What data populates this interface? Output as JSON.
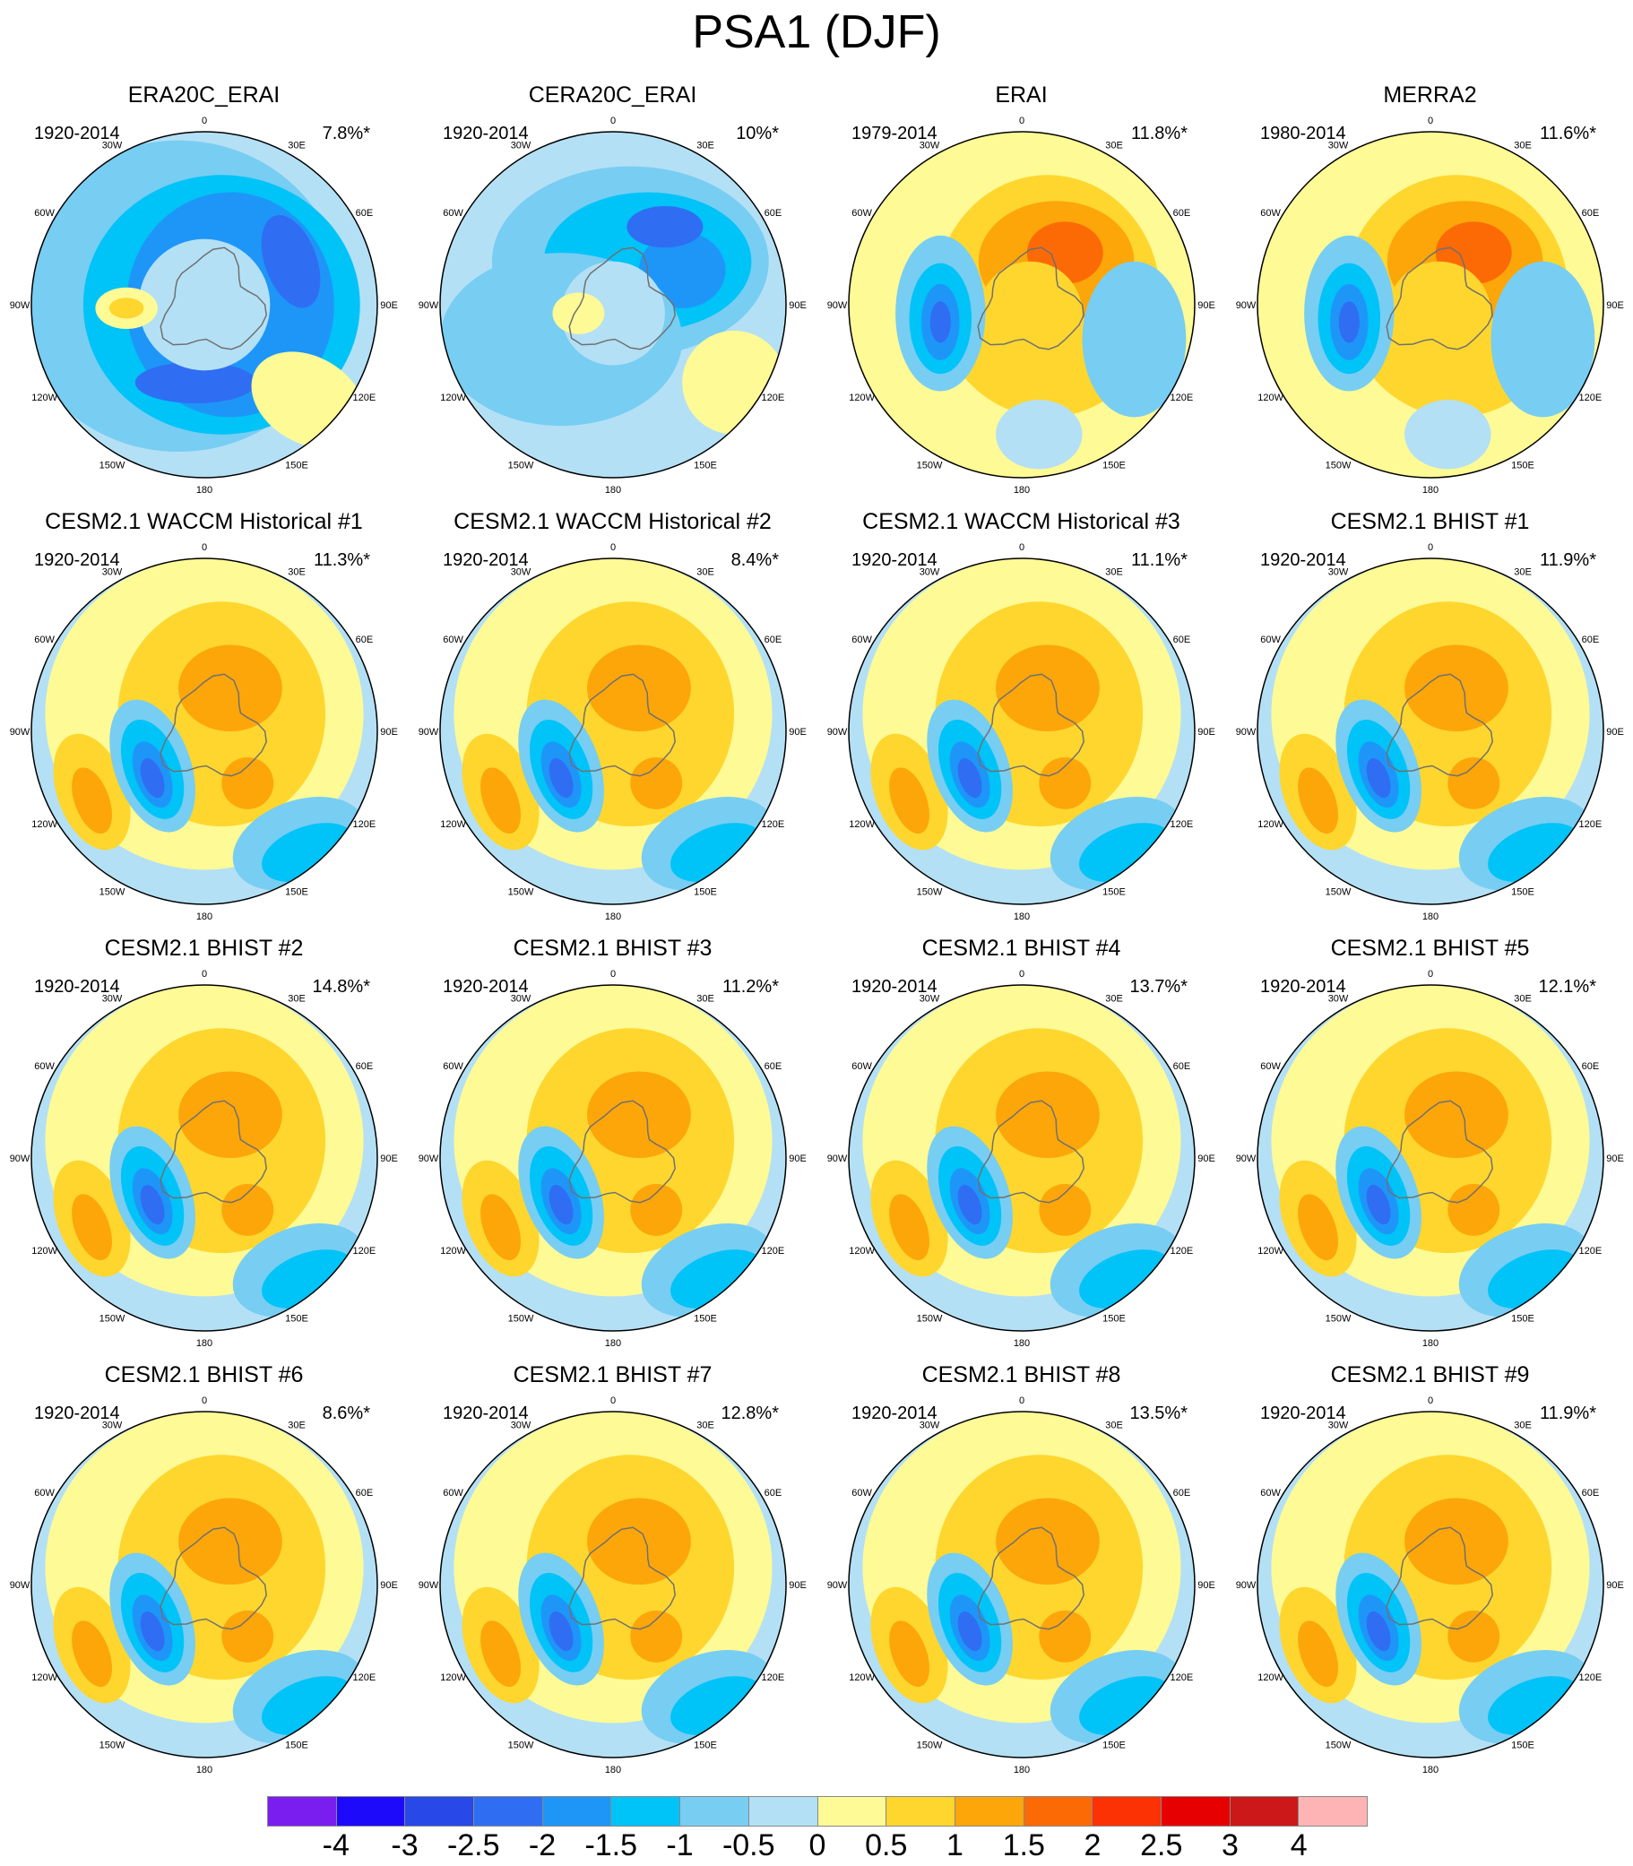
{
  "title": "PSA1 (DJF)",
  "lon_labels": [
    "0",
    "30E",
    "60E",
    "90E",
    "120E",
    "150E",
    "180",
    "150W",
    "120W",
    "90W",
    "60W",
    "30W"
  ],
  "panels": [
    {
      "title": "ERA20C_ERAI",
      "period": "1920-2014",
      "variance": "7.8%*",
      "pattern": "negative"
    },
    {
      "title": "CERA20C_ERAI",
      "period": "1920-2014",
      "variance": "10%*",
      "pattern": "negative2"
    },
    {
      "title": "ERAI",
      "period": "1979-2014",
      "variance": "11.8%*",
      "pattern": "positive"
    },
    {
      "title": "MERRA2",
      "period": "1980-2014",
      "variance": "11.6%*",
      "pattern": "positive"
    },
    {
      "title": "CESM2.1 WACCM Historical #1",
      "period": "1920-2014",
      "variance": "11.3%*",
      "pattern": "model"
    },
    {
      "title": "CESM2.1 WACCM Historical #2",
      "period": "1920-2014",
      "variance": "8.4%*",
      "pattern": "model"
    },
    {
      "title": "CESM2.1 WACCM Historical #3",
      "period": "1920-2014",
      "variance": "11.1%*",
      "pattern": "model"
    },
    {
      "title": "CESM2.1 BHIST #1",
      "period": "1920-2014",
      "variance": "11.9%*",
      "pattern": "model"
    },
    {
      "title": "CESM2.1 BHIST #2",
      "period": "1920-2014",
      "variance": "14.8%*",
      "pattern": "model"
    },
    {
      "title": "CESM2.1 BHIST #3",
      "period": "1920-2014",
      "variance": "11.2%*",
      "pattern": "model"
    },
    {
      "title": "CESM2.1 BHIST #4",
      "period": "1920-2014",
      "variance": "13.7%*",
      "pattern": "model"
    },
    {
      "title": "CESM2.1 BHIST #5",
      "period": "1920-2014",
      "variance": "12.1%*",
      "pattern": "model"
    },
    {
      "title": "CESM2.1 BHIST #6",
      "period": "1920-2014",
      "variance": "8.6%*",
      "pattern": "model"
    },
    {
      "title": "CESM2.1 BHIST #7",
      "period": "1920-2014",
      "variance": "12.8%*",
      "pattern": "model"
    },
    {
      "title": "CESM2.1 BHIST #8",
      "period": "1920-2014",
      "variance": "13.5%*",
      "pattern": "model"
    },
    {
      "title": "CESM2.1 BHIST #9",
      "period": "1920-2014",
      "variance": "11.9%*",
      "pattern": "model"
    }
  ],
  "colorbar": {
    "colors": [
      "#7a1ef0",
      "#1e0afa",
      "#2848e8",
      "#2f6ef2",
      "#1e96f8",
      "#00c3f8",
      "#78cdf2",
      "#b4e0f5",
      "#fefa96",
      "#fed62e",
      "#fca60a",
      "#fc6a06",
      "#fc3204",
      "#e60002",
      "#cc1818",
      "#feb4b4"
    ],
    "labels": [
      "-4",
      "-3",
      "-2.5",
      "-2",
      "-1.5",
      "-1",
      "-0.5",
      "0",
      "0.5",
      "1",
      "1.5",
      "2",
      "2.5",
      "3",
      "4"
    ]
  }
}
